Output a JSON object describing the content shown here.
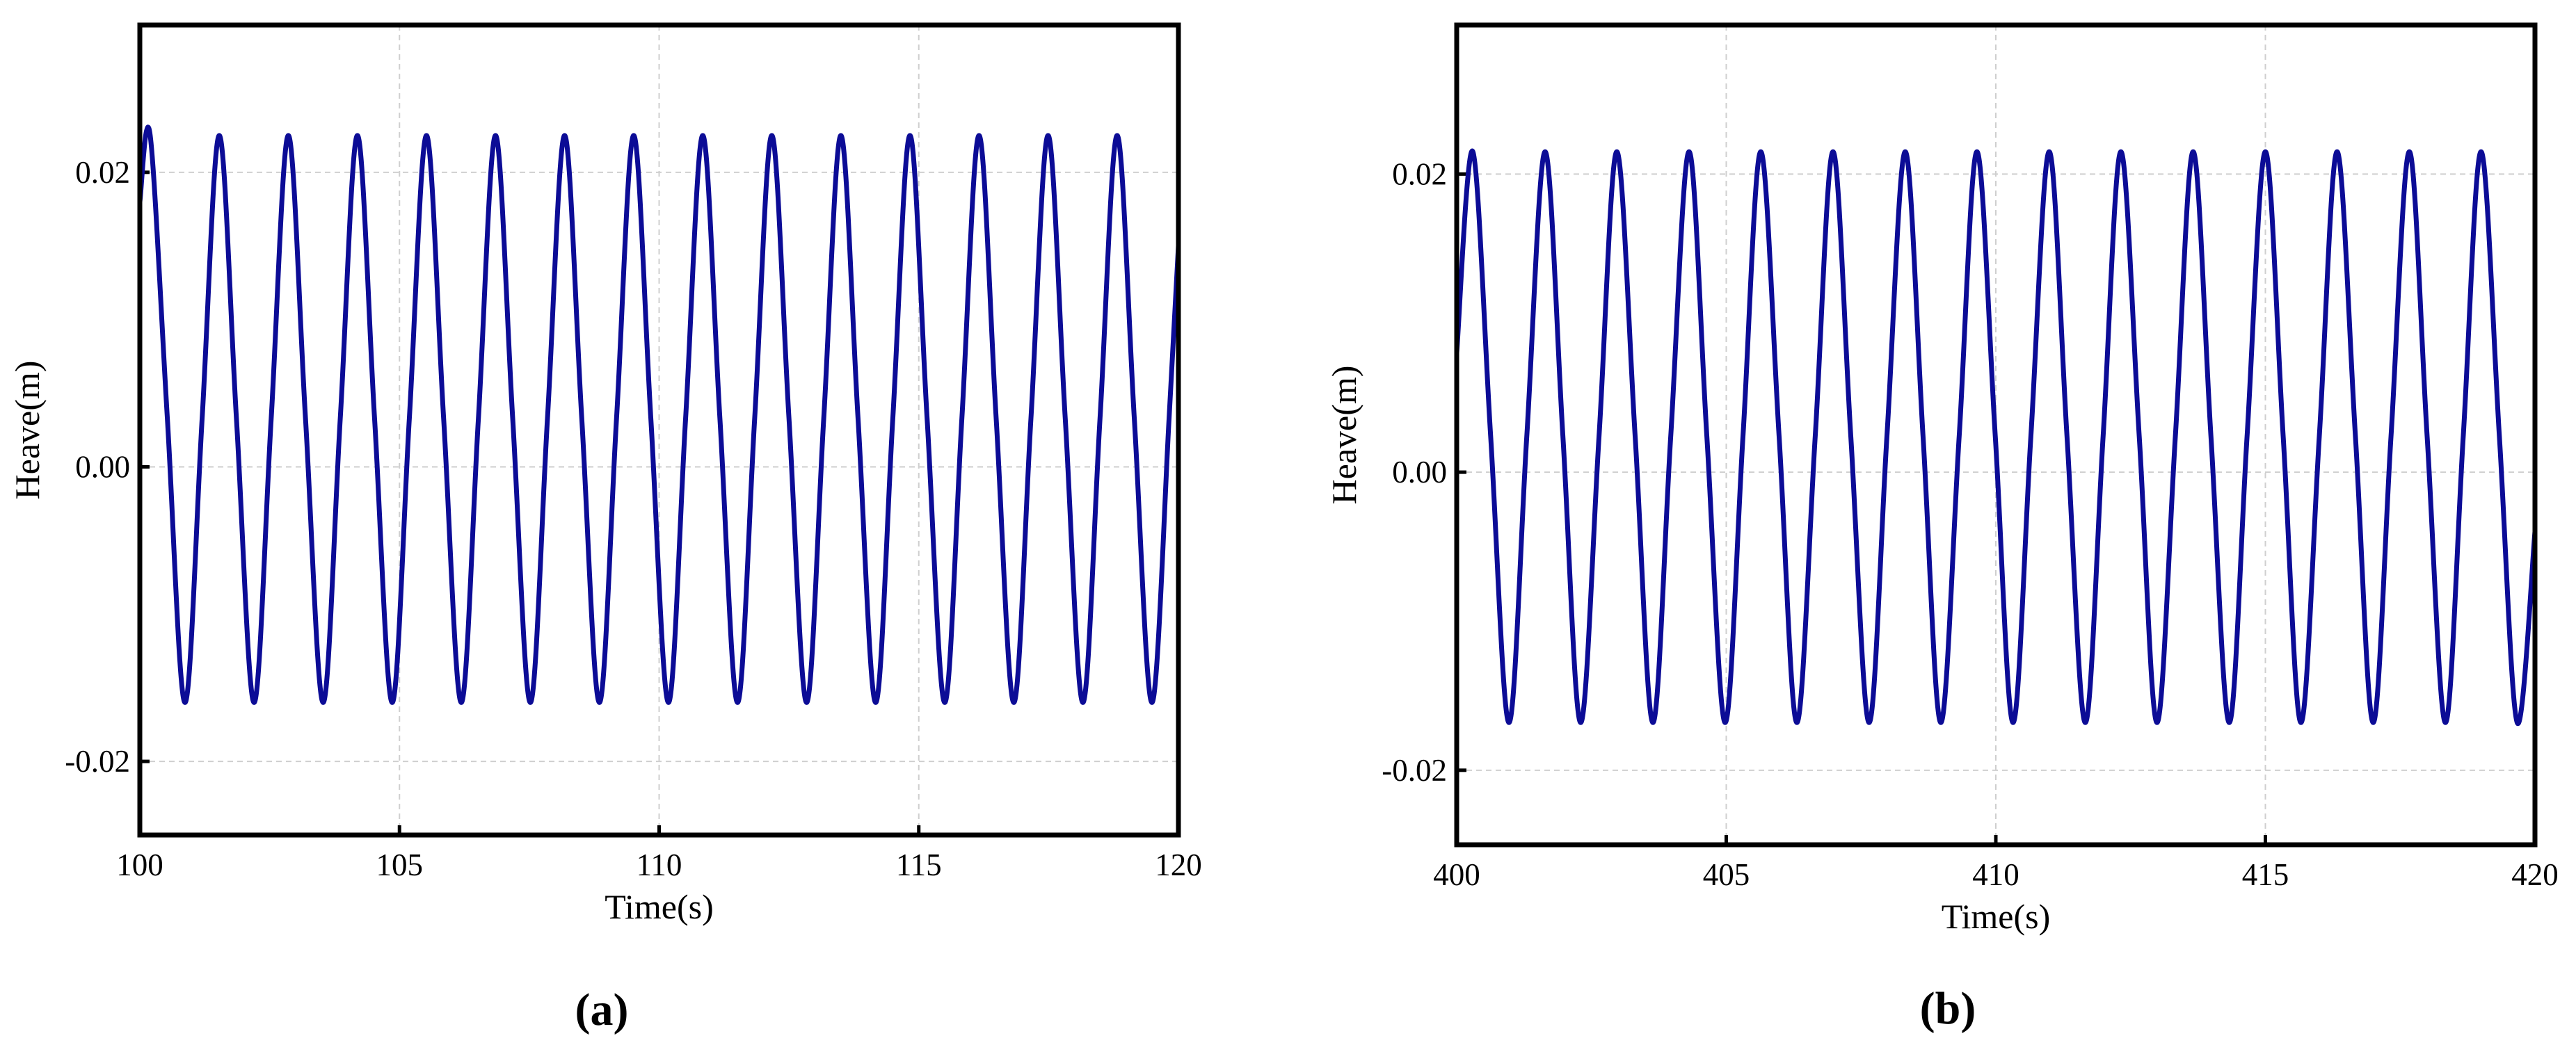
{
  "chart_data": [
    {
      "type": "line",
      "xlabel": "Time(s)",
      "ylabel": "Heave(m)",
      "caption": "(a)",
      "color": "#0c0c96",
      "grid": true,
      "xlim": [
        100,
        120
      ],
      "xticks": [
        100,
        105,
        110,
        115,
        120
      ],
      "ylim": [
        -0.025,
        0.03
      ],
      "yticks": [
        {
          "value": -0.02,
          "label": "-0.02"
        },
        {
          "value": 0,
          "label": "0.00"
        },
        0.02
      ],
      "x": [
        100,
        100.2,
        100.53,
        100.87,
        101.2,
        101.53,
        101.86,
        102.2,
        102.53,
        102.86,
        103.19,
        103.53,
        103.86,
        104.19,
        104.52,
        104.86,
        105.19,
        105.52,
        105.85,
        106.19,
        106.52,
        106.85,
        107.18,
        107.52,
        107.85,
        108.18,
        108.51,
        108.85,
        109.18,
        109.51,
        109.84,
        110.18,
        110.51,
        110.84,
        111.17,
        111.51,
        111.84,
        112.17,
        112.5,
        112.84,
        113.17,
        113.5,
        113.83,
        114.17,
        114.5,
        114.83,
        115.16,
        115.5,
        115.83,
        116.16,
        116.49,
        116.83,
        117.16,
        117.49,
        117.82,
        118.16,
        118.49,
        118.82,
        119.15,
        119.49,
        119.82,
        120
      ],
      "values": [
        0.018,
        0.0225,
        0.0033,
        -0.016,
        0.0033,
        0.0225,
        0.0033,
        -0.016,
        0.0033,
        0.0225,
        0.0033,
        -0.016,
        0.0033,
        0.0225,
        0.0033,
        -0.016,
        0.0033,
        0.0225,
        0.0033,
        -0.016,
        0.0033,
        0.0225,
        0.0033,
        -0.016,
        0.0033,
        0.0225,
        0.0033,
        -0.016,
        0.0033,
        0.0225,
        0.0033,
        -0.016,
        0.0033,
        0.0225,
        0.0033,
        -0.016,
        0.0033,
        0.0225,
        0.0033,
        -0.016,
        0.0033,
        0.0225,
        0.0033,
        -0.016,
        0.0033,
        0.0225,
        0.0033,
        -0.016,
        0.0033,
        0.0225,
        0.0033,
        -0.016,
        0.0033,
        0.0225,
        0.0033,
        -0.016,
        0.0033,
        0.0225,
        0.0033,
        -0.016,
        0.0033,
        0.015
      ]
    },
    {
      "type": "line",
      "xlabel": "Time(s)",
      "ylabel": "Heave(m)",
      "caption": "(b)",
      "color": "#0c0c96",
      "grid": true,
      "xlim": [
        400,
        420
      ],
      "xticks": [
        400,
        405,
        410,
        415,
        420
      ],
      "ylim": [
        -0.025,
        0.03
      ],
      "yticks": [
        {
          "value": -0.02,
          "label": "-0.02"
        },
        {
          "value": 0,
          "label": "0.00"
        },
        0.02
      ],
      "x": [
        400,
        400.3,
        400.63,
        400.97,
        401.3,
        401.64,
        401.97,
        402.3,
        402.64,
        402.97,
        403.31,
        403.64,
        403.97,
        404.31,
        404.64,
        404.98,
        405.31,
        405.64,
        405.98,
        406.31,
        406.65,
        406.98,
        407.31,
        407.65,
        407.98,
        408.32,
        408.65,
        408.98,
        409.32,
        409.65,
        409.99,
        410.32,
        410.65,
        410.99,
        411.32,
        411.66,
        411.99,
        412.32,
        412.66,
        412.99,
        413.33,
        413.66,
        413.99,
        414.33,
        414.66,
        415.0,
        415.33,
        415.66,
        416.0,
        416.33,
        416.67,
        417.0,
        417.33,
        417.67,
        418.0,
        418.34,
        418.67,
        419.0,
        419.34,
        419.67,
        420
      ],
      "values": [
        0.008,
        0.0215,
        0.0024,
        -0.0168,
        0.0024,
        0.0215,
        0.0024,
        -0.0168,
        0.0024,
        0.0215,
        0.0024,
        -0.0168,
        0.0024,
        0.0215,
        0.0024,
        -0.0168,
        0.0024,
        0.0215,
        0.0024,
        -0.0168,
        0.0024,
        0.0215,
        0.0024,
        -0.0168,
        0.0024,
        0.0215,
        0.0024,
        -0.0168,
        0.0024,
        0.0215,
        0.0024,
        -0.0168,
        0.0024,
        0.0215,
        0.0024,
        -0.0168,
        0.0024,
        0.0215,
        0.0024,
        -0.0168,
        0.0024,
        0.0215,
        0.0024,
        -0.0168,
        0.0024,
        0.0215,
        0.0024,
        -0.0168,
        0.0024,
        0.0215,
        0.0024,
        -0.0168,
        0.0024,
        0.0215,
        0.0024,
        -0.0168,
        0.0024,
        0.0215,
        0.0024,
        -0.0168,
        -0.004
      ]
    }
  ]
}
